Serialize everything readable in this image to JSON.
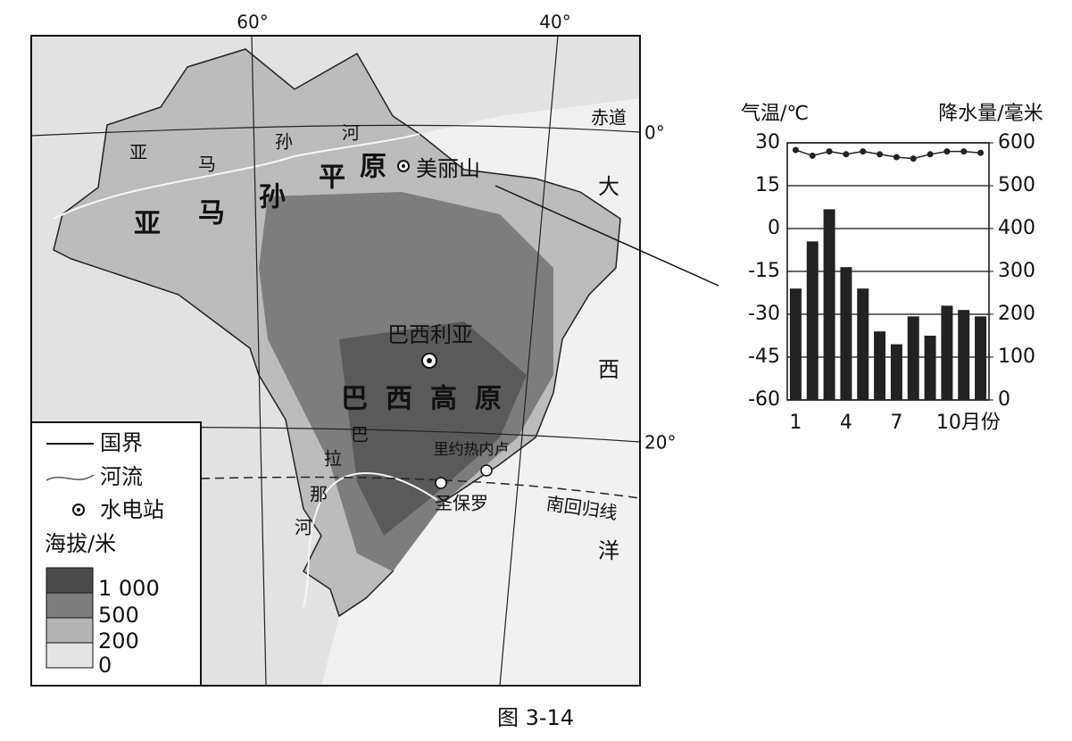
{
  "map": {
    "meridians": [
      "60°",
      "40°"
    ],
    "parallels": [
      "0°",
      "20°"
    ],
    "equator": "赤道",
    "tropic": "南回归线",
    "amazon_plain": [
      "亚",
      "马",
      "孙",
      "平",
      "原"
    ],
    "amazon_river": [
      "亚",
      "马",
      "孙",
      "河"
    ],
    "parana_river": [
      "巴",
      "拉",
      "那",
      "河"
    ],
    "plateau": "巴西高原",
    "ocean": [
      "大",
      "西",
      "洋"
    ],
    "hydro_station": "美丽山",
    "capital": "巴西利亚",
    "cities": [
      "里约热内卢",
      "圣保罗"
    ]
  },
  "legend": {
    "items": [
      "国界",
      "河流",
      "水电站"
    ],
    "elevation_title": "海拔/米",
    "elevation_levels": [
      "1 000",
      "500",
      "200",
      "0"
    ]
  },
  "chart_data": {
    "type": "bar-line",
    "categories": [
      "1",
      null,
      null,
      "4",
      null,
      null,
      "7",
      null,
      null,
      "10月份",
      null,
      null
    ],
    "y_label": "气温/℃",
    "y2_label": "降水量/毫米",
    "ylim": [
      -60,
      30
    ],
    "yticks": [
      -60,
      -45,
      -30,
      -15,
      0,
      15,
      30
    ],
    "y2lim": [
      0,
      600
    ],
    "y2ticks": [
      0,
      100,
      200,
      300,
      400,
      500,
      600
    ],
    "series": [
      {
        "type": "bar",
        "axis": "y2",
        "color": "#222222",
        "values": [
          260,
          370,
          445,
          310,
          260,
          160,
          130,
          195,
          150,
          220,
          210,
          195
        ]
      },
      {
        "type": "line",
        "color": "#222222",
        "values": [
          27.5,
          25.5,
          27,
          26,
          27,
          26,
          25,
          24.5,
          26,
          27,
          27,
          26.5
        ]
      }
    ],
    "grid": true
  },
  "caption": "图 3-14"
}
